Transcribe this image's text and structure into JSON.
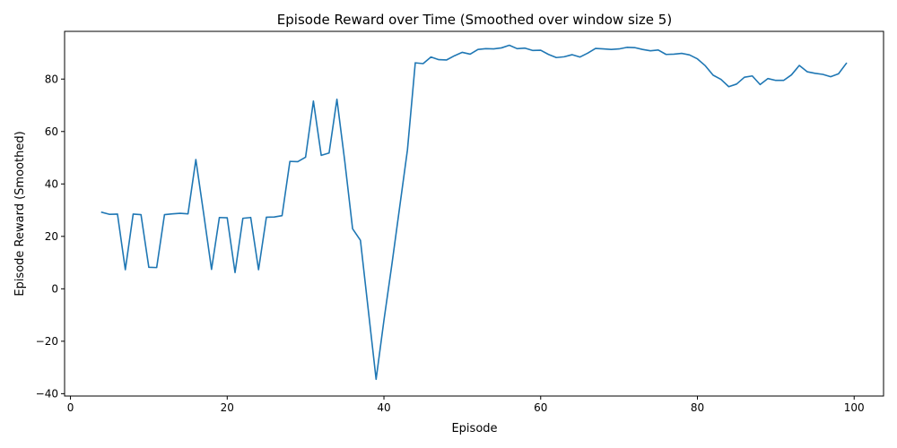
{
  "chart_data": {
    "type": "line",
    "title": "Episode Reward over Time (Smoothed over window size 5)",
    "xlabel": "Episode",
    "ylabel": "Episode Reward (Smoothed)",
    "xlim": [
      -0.75,
      103.75
    ],
    "ylim": [
      -40.9,
      98.2
    ],
    "xticks": [
      0,
      20,
      40,
      60,
      80,
      100
    ],
    "yticks": [
      -40,
      -20,
      0,
      20,
      40,
      60,
      80
    ],
    "grid": false,
    "line_color": "#1f77b4",
    "series": [
      {
        "name": "smoothed",
        "x": [
          4,
          5,
          6,
          7,
          8,
          9,
          10,
          11,
          12,
          13,
          14,
          15,
          16,
          17,
          18,
          19,
          20,
          21,
          22,
          23,
          24,
          25,
          26,
          27,
          28,
          29,
          30,
          31,
          32,
          33,
          34,
          35,
          36,
          37,
          38,
          39,
          40,
          41,
          42,
          43,
          44,
          45,
          46,
          47,
          48,
          49,
          50,
          51,
          52,
          53,
          54,
          55,
          56,
          57,
          58,
          59,
          60,
          61,
          62,
          63,
          64,
          65,
          66,
          67,
          68,
          69,
          70,
          71,
          72,
          73,
          74,
          75,
          76,
          77,
          78,
          79,
          80,
          81,
          82,
          83,
          84,
          85,
          86,
          87,
          88,
          89,
          90,
          91,
          92,
          93,
          94,
          95,
          96,
          97,
          98,
          99
        ],
        "y": [
          29.2,
          28.4,
          28.5,
          7.3,
          28.5,
          28.3,
          8.2,
          8.1,
          28.3,
          28.6,
          28.8,
          28.6,
          49.3,
          28.6,
          7.4,
          27.2,
          27.1,
          6.2,
          26.9,
          27.2,
          7.3,
          27.3,
          27.4,
          27.9,
          48.6,
          48.5,
          50.2,
          71.6,
          50.9,
          51.8,
          72.3,
          48.7,
          22.9,
          18.5,
          -8.0,
          -34.5,
          -12.0,
          9.0,
          31.0,
          53.0,
          86.2,
          85.9,
          88.4,
          87.4,
          87.3,
          88.9,
          90.2,
          89.5,
          91.3,
          91.6,
          91.5,
          91.9,
          92.9,
          91.6,
          91.8,
          90.9,
          91.0,
          89.4,
          88.2,
          88.5,
          89.3,
          88.4,
          89.9,
          91.7,
          91.5,
          91.3,
          91.5,
          92.1,
          92.0,
          91.3,
          90.8,
          91.1,
          89.4,
          89.5,
          89.8,
          89.2,
          87.7,
          85.1,
          81.5,
          79.9,
          77.1,
          78.1,
          80.7,
          81.2,
          77.9,
          80.2,
          79.5,
          79.5,
          81.6,
          85.2,
          82.8,
          82.2,
          81.8,
          80.9,
          82.0,
          86.0
        ]
      }
    ]
  }
}
